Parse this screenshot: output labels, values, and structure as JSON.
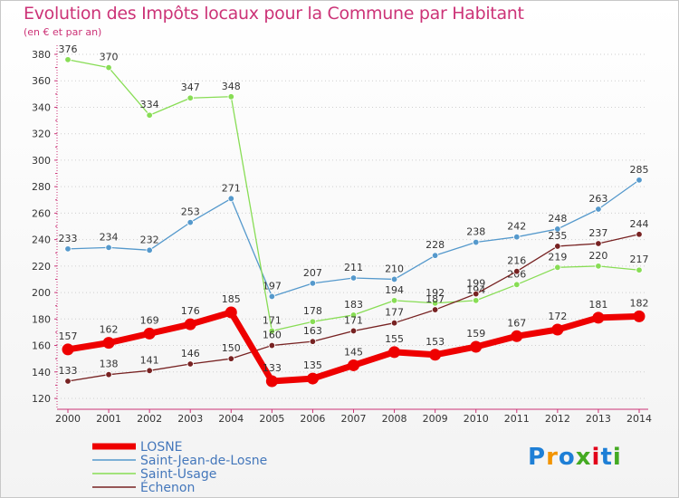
{
  "title": "Evolution des Impôts locaux pour la Commune par Habitant",
  "subtitle": "(en € et par an)",
  "logo": {
    "text": "Proxiti",
    "colors": [
      "#1e7fd6",
      "#f29400",
      "#1e7fd6",
      "#44aa22",
      "#e2001a",
      "#1e7fd6",
      "#44aa22"
    ]
  },
  "chart_data": {
    "type": "line",
    "x": [
      "2000",
      "2001",
      "2002",
      "2003",
      "2004",
      "2005",
      "2006",
      "2007",
      "2008",
      "2009",
      "2010",
      "2011",
      "2012",
      "2013",
      "2014"
    ],
    "ylim": [
      120,
      380
    ],
    "yticks": [
      120,
      140,
      160,
      180,
      200,
      220,
      240,
      260,
      280,
      300,
      320,
      340,
      360,
      380
    ],
    "grid": "horizontal-dotted",
    "legend_position": "bottom-left",
    "series": [
      {
        "name": "LOSNE",
        "color": "#ee0000",
        "emphasis": true,
        "values": [
          157,
          162,
          169,
          176,
          185,
          133,
          135,
          145,
          155,
          153,
          159,
          167,
          172,
          181,
          182
        ]
      },
      {
        "name": "Saint-Jean-de-Losne",
        "color": "#5599cc",
        "emphasis": false,
        "values": [
          233,
          234,
          232,
          253,
          271,
          197,
          207,
          211,
          210,
          228,
          238,
          242,
          248,
          263,
          285
        ]
      },
      {
        "name": "Saint-Usage",
        "color": "#88dd55",
        "emphasis": false,
        "values": [
          376,
          370,
          334,
          347,
          348,
          171,
          178,
          183,
          194,
          192,
          194,
          206,
          219,
          220,
          217
        ]
      },
      {
        "name": "Échenon",
        "color": "#772222",
        "emphasis": false,
        "values": [
          133,
          138,
          141,
          146,
          150,
          160,
          163,
          171,
          177,
          187,
          199,
          216,
          235,
          237,
          244
        ]
      }
    ]
  }
}
